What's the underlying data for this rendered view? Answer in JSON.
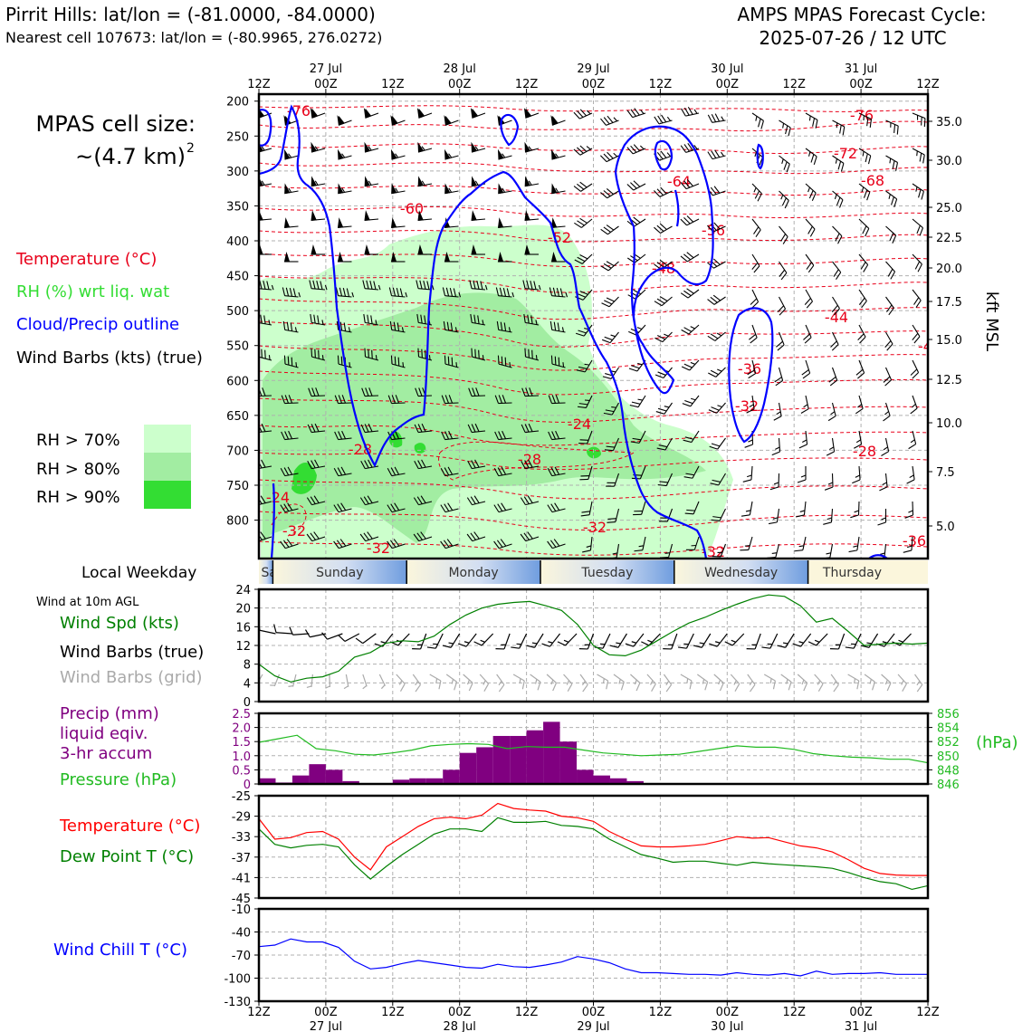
{
  "header": {
    "title_left": "Pirrit Hills: lat/lon = (-81.0000, -84.0000)",
    "subtitle_left": "Nearest cell 107673: lat/lon = (-80.9965, 276.0272)",
    "title_right_1": "AMPS MPAS Forecast Cycle:",
    "title_right_2": "2025-07-26 / 12 UTC"
  },
  "cell_size": {
    "line1": "MPAS cell size:",
    "line2": "~(4.7 km)",
    "exponent": "2"
  },
  "legend": {
    "temperature": "Temperature (°C)",
    "rh": "RH (%) wrt liq. wat",
    "cloud": "Cloud/Precip outline",
    "wind": "Wind Barbs (kts) (true)",
    "rh70": "RH > 70%",
    "rh80": "RH > 80%",
    "rh90": "RH > 90%"
  },
  "colors": {
    "temperature": "#e8001a",
    "rh_label": "#33dd33",
    "cloud": "#0000ff",
    "wind": "#000000",
    "rh70": "#ccffcc",
    "rh80": "#a2eda2",
    "rh90": "#33dd33",
    "wind_speed": "#008000",
    "grid_barbs": "#aaaaaa",
    "precip": "#800080",
    "pressure": "#22bb22",
    "temp_line": "#ff0000",
    "dew_line": "#008000",
    "wind_chill": "#0000ff"
  },
  "weekday": {
    "label": "Local Weekday",
    "days": [
      "Saturday",
      "Sunday",
      "Monday",
      "Tuesday",
      "Wednesday",
      "Thursday"
    ]
  },
  "time_axis": {
    "top_labels": [
      "12Z",
      "00Z",
      "12Z",
      "00Z",
      "12Z",
      "00Z",
      "12Z",
      "00Z",
      "12Z",
      "00Z",
      "12Z"
    ],
    "date_labels": [
      "27 Jul",
      "28 Jul",
      "29 Jul",
      "30 Jul",
      "31 Jul"
    ]
  },
  "chart_data": [
    {
      "type": "contour",
      "panel": "upper-air",
      "ylabel_right": "kft MSL",
      "pressure_ticks": [
        200,
        250,
        300,
        350,
        400,
        450,
        500,
        550,
        600,
        650,
        700,
        750,
        800
      ],
      "kft_ticks": [
        "35.0",
        "30.0",
        "25.0",
        "22.5",
        "20.0",
        "17.5",
        "15.0",
        "12.5",
        "10.0",
        "7.5",
        "5.0"
      ],
      "temperature_labels": [
        "-76",
        "-76",
        "-72",
        "-68",
        "-64",
        "-60",
        "-52",
        "-56",
        "-48",
        "-44",
        "-4",
        "-36",
        "-32",
        "-24",
        "-28",
        "-28",
        "-28",
        "-24",
        "-32",
        "-32",
        "-32",
        "-32",
        "-36"
      ]
    },
    {
      "type": "line",
      "panel": "wind",
      "title": "Wind at 10m AGL",
      "series_labels": [
        "Wind Spd (kts)",
        "Wind Barbs (true)",
        "Wind Barbs (grid)"
      ],
      "ylim": [
        0,
        24
      ],
      "yticks": [
        "24",
        "20",
        "16",
        "12",
        "8",
        "4",
        "0"
      ],
      "series": [
        {
          "name": "Wind Spd (kts)",
          "values": [
            8.0,
            5.5,
            4.2,
            5.0,
            5.3,
            6.5,
            9.5,
            10.5,
            12.5,
            13.0,
            12.8,
            14.0,
            16.5,
            18.5,
            20.0,
            20.8,
            21.2,
            21.4,
            20.5,
            19.5,
            16.5,
            12.0,
            10.0,
            9.8,
            11.0,
            13.0,
            15.0,
            16.8,
            18.0,
            19.5,
            20.8,
            22.0,
            22.8,
            22.5,
            20.5,
            17.0,
            17.8,
            15.0,
            12.0,
            12.3,
            12.5,
            12.3,
            12.5
          ]
        }
      ]
    },
    {
      "type": "bar+line",
      "panel": "precip-pressure",
      "series_labels": [
        "Precip (mm)",
        "liquid eqiv.",
        "3-hr accum",
        "Pressure (hPa)"
      ],
      "ylim_precip": [
        0,
        2.5
      ],
      "yticks_precip": [
        "2.5",
        "2.0",
        "1.5",
        "1.0",
        "0.5",
        "0"
      ],
      "ylabel_pressure": "(hPa)",
      "ylim_pressure": [
        846,
        856
      ],
      "yticks_pressure": [
        "856",
        "854",
        "852",
        "850",
        "848",
        "846"
      ],
      "precip_values": [
        0.2,
        0.05,
        0.3,
        0.7,
        0.5,
        0.1,
        0.0,
        0.0,
        0.15,
        0.2,
        0.2,
        0.5,
        1.1,
        1.3,
        1.7,
        1.7,
        1.9,
        2.2,
        1.5,
        0.5,
        0.3,
        0.2,
        0.1,
        0.0
      ],
      "pressure_values": [
        851.9,
        852.4,
        852.9,
        851.0,
        850.7,
        850.2,
        850.1,
        850.4,
        850.8,
        851.4,
        851.6,
        851.7,
        851.6,
        851.0,
        851.3,
        851.2,
        851.2,
        850.8,
        850.4,
        850.2,
        850.0,
        850.1,
        850.2,
        850.6,
        851.0,
        851.4,
        851.2,
        851.2,
        850.9,
        850.3,
        850.0,
        849.8,
        849.7,
        849.5,
        849.5,
        849.0
      ],
      "bar_width_hours": 3
    },
    {
      "type": "line",
      "panel": "temperature",
      "series_labels": [
        "Temperature (°C)",
        "Dew Point T (°C)"
      ],
      "ylim": [
        -45,
        -25
      ],
      "yticks": [
        "-25",
        "-29",
        "-33",
        "-37",
        "-41",
        "-45"
      ],
      "series": [
        {
          "name": "Temperature (°C)",
          "values": [
            -29.5,
            -33.5,
            -33.2,
            -32.2,
            -32.0,
            -33.5,
            -37.0,
            -39.5,
            -35.0,
            -33.0,
            -31.0,
            -29.5,
            -29.2,
            -29.5,
            -28.8,
            -26.5,
            -27.5,
            -27.8,
            -28.0,
            -29.0,
            -29.3,
            -30.0,
            -32.0,
            -33.5,
            -34.8,
            -35.0,
            -35.0,
            -34.8,
            -34.5,
            -33.8,
            -33.0,
            -33.3,
            -33.2,
            -34.0,
            -34.8,
            -35.2,
            -36.0,
            -37.5,
            -39.2,
            -40.2,
            -40.5,
            -40.6,
            -40.6
          ]
        },
        {
          "name": "Dew Point T (°C)",
          "values": [
            -31.5,
            -34.5,
            -35.2,
            -34.7,
            -34.5,
            -35.0,
            -38.5,
            -41.3,
            -38.8,
            -36.5,
            -34.5,
            -32.5,
            -31.5,
            -31.5,
            -32.0,
            -29.3,
            -30.2,
            -30.2,
            -30.0,
            -30.8,
            -31.0,
            -31.5,
            -33.5,
            -35.0,
            -36.5,
            -37.2,
            -38.0,
            -37.8,
            -37.8,
            -38.2,
            -38.6,
            -38.0,
            -38.3,
            -38.5,
            -38.7,
            -38.9,
            -39.2,
            -40.0,
            -41.0,
            -41.8,
            -42.2,
            -43.3,
            -42.6
          ]
        }
      ]
    },
    {
      "type": "line",
      "panel": "wind-chill",
      "series_labels": [
        "Wind Chill T (°C)"
      ],
      "ylim": [
        -130,
        -10
      ],
      "yticks": [
        "-10",
        "-40",
        "-70",
        "-100",
        "-130"
      ],
      "series": [
        {
          "name": "Wind Chill T (°C)",
          "values": [
            -59,
            -57,
            -49,
            -53,
            -53,
            -60,
            -78,
            -88,
            -86,
            -81,
            -77,
            -80,
            -83,
            -86,
            -87,
            -82,
            -85,
            -86,
            -83,
            -79,
            -72,
            -75,
            -80,
            -88,
            -93,
            -93,
            -94,
            -95,
            -95,
            -96,
            -93,
            -95,
            -96,
            -94,
            -97,
            -91,
            -95,
            -94,
            -94,
            -93,
            -95,
            -95,
            -95
          ]
        }
      ]
    }
  ]
}
